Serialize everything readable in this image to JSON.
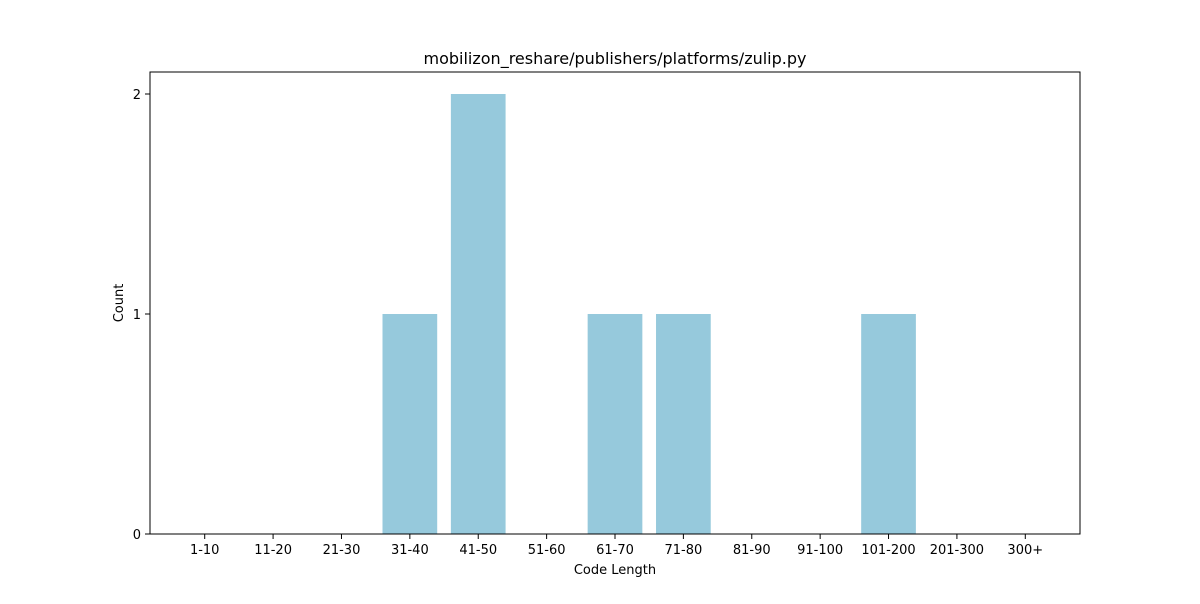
{
  "chart_data": {
    "type": "bar",
    "title": "mobilizon_reshare/publishers/platforms/zulip.py",
    "xlabel": "Code Length",
    "ylabel": "Count",
    "categories": [
      "1-10",
      "11-20",
      "21-30",
      "31-40",
      "41-50",
      "51-60",
      "61-70",
      "71-80",
      "81-90",
      "91-100",
      "101-200",
      "201-300",
      "300+"
    ],
    "values": [
      0,
      0,
      0,
      1,
      2,
      0,
      1,
      1,
      0,
      0,
      1,
      0,
      0
    ],
    "ylim": [
      0,
      2.1
    ],
    "yticks": [
      0,
      1,
      2
    ],
    "bar_color": "#96c9dc",
    "grid": false,
    "legend": "none"
  }
}
